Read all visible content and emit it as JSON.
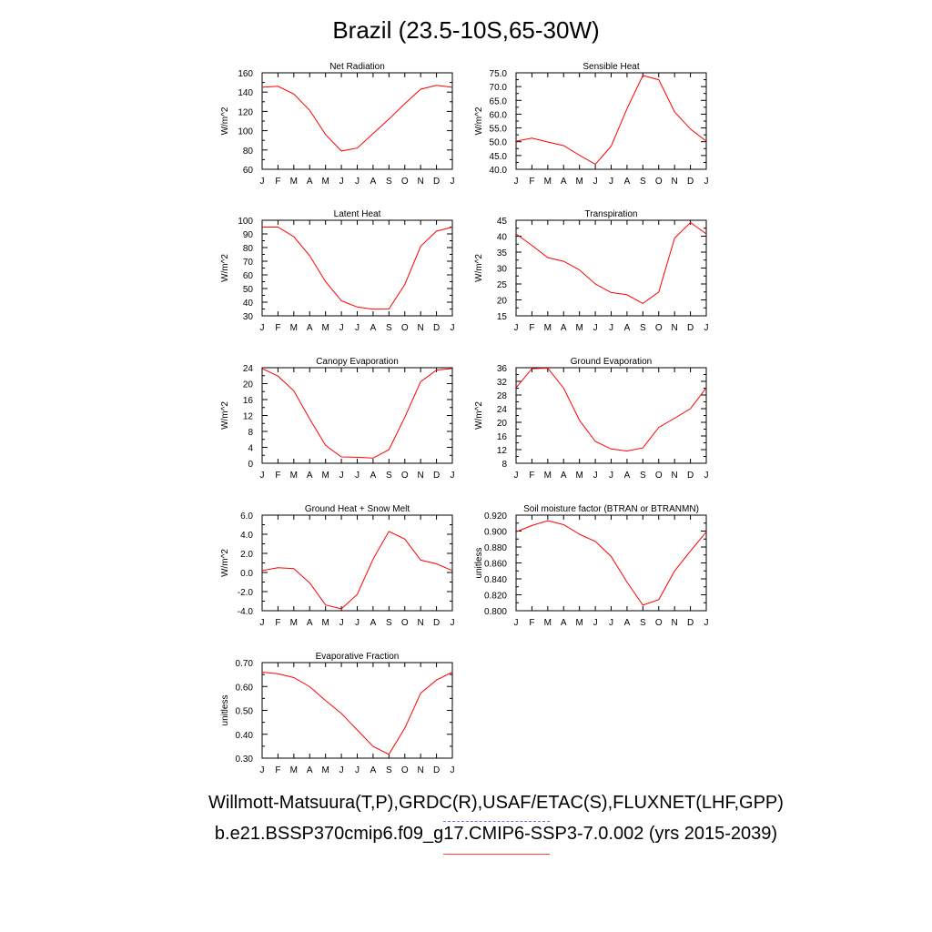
{
  "title": "Brazil (23.5-10S,65-30W)",
  "legend": {
    "observations": "Willmott-Matsuura(T,P),GRDC(R),USAF/ETAC(S),FLUXNET(LHF,GPP)",
    "model": "b.e21.BSSP370cmip6.f09_g17.CMIP6-SSP3-7.0.002 (yrs 2015-2039)",
    "observations_color": "#6a6aff",
    "model_color": "#ff0000"
  },
  "chart_data": [
    {
      "type": "line",
      "title": "Net Radiation",
      "ylabel": "W/m^2",
      "categories": [
        "J",
        "F",
        "M",
        "A",
        "M",
        "J",
        "J",
        "A",
        "S",
        "O",
        "N",
        "D",
        "J"
      ],
      "ylim": [
        60,
        160
      ],
      "yticks": [
        "60",
        "80",
        "100",
        "120",
        "140",
        "160"
      ],
      "values": [
        145,
        146,
        138,
        121,
        96,
        79,
        82,
        97,
        112,
        128,
        143,
        147,
        145
      ],
      "color": "#ff0000"
    },
    {
      "type": "line",
      "title": "Sensible Heat",
      "ylabel": "W/m^2",
      "categories": [
        "J",
        "F",
        "M",
        "A",
        "M",
        "J",
        "J",
        "A",
        "S",
        "O",
        "N",
        "D",
        "J"
      ],
      "ylim": [
        40,
        75
      ],
      "yticks": [
        "40.0",
        "45.0",
        "50.0",
        "55.0",
        "60.0",
        "65.0",
        "70.0",
        "75.0"
      ],
      "values": [
        50.2,
        51.3,
        49.9,
        48.6,
        45.1,
        41.8,
        48.4,
        62.0,
        74.0,
        72.5,
        60.8,
        54.6,
        50.2
      ],
      "color": "#ff0000"
    },
    {
      "type": "line",
      "title": "Latent Heat",
      "ylabel": "W/m^2",
      "categories": [
        "J",
        "F",
        "M",
        "A",
        "M",
        "J",
        "J",
        "A",
        "S",
        "O",
        "N",
        "D",
        "J"
      ],
      "ylim": [
        30,
        100
      ],
      "yticks": [
        "30",
        "40",
        "50",
        "60",
        "70",
        "80",
        "90",
        "100"
      ],
      "values": [
        95,
        95,
        88,
        74,
        55,
        41,
        36.5,
        34.8,
        35,
        53,
        81,
        92,
        95
      ],
      "color": "#ff0000"
    },
    {
      "type": "line",
      "title": "Transpiration",
      "ylabel": "W/m^2",
      "categories": [
        "J",
        "F",
        "M",
        "A",
        "M",
        "J",
        "J",
        "A",
        "S",
        "O",
        "N",
        "D",
        "J"
      ],
      "ylim": [
        15,
        45
      ],
      "yticks": [
        "15",
        "20",
        "25",
        "30",
        "35",
        "40",
        "45"
      ],
      "values": [
        40.7,
        37.1,
        33.3,
        32.1,
        29.4,
        25.0,
        22.3,
        21.6,
        18.9,
        22.5,
        39.4,
        44.3,
        40.7
      ],
      "color": "#ff0000"
    },
    {
      "type": "line",
      "title": "Canopy Evaporation",
      "ylabel": "W/m^2",
      "categories": [
        "J",
        "F",
        "M",
        "A",
        "M",
        "J",
        "J",
        "A",
        "S",
        "O",
        "N",
        "D",
        "J"
      ],
      "ylim": [
        0,
        24
      ],
      "yticks": [
        "0",
        "4",
        "8",
        "12",
        "16",
        "20",
        "24"
      ],
      "values": [
        23.8,
        21.9,
        18.2,
        11.1,
        4.5,
        1.6,
        1.5,
        1.3,
        3.4,
        11.6,
        20.5,
        23.4,
        23.8
      ],
      "color": "#ff0000"
    },
    {
      "type": "line",
      "title": "Ground Evaporation",
      "ylabel": "W/m^2",
      "categories": [
        "J",
        "F",
        "M",
        "A",
        "M",
        "J",
        "J",
        "A",
        "S",
        "O",
        "N",
        "D",
        "J"
      ],
      "ylim": [
        8,
        36
      ],
      "yticks": [
        "8",
        "12",
        "16",
        "20",
        "24",
        "28",
        "32",
        "36"
      ],
      "values": [
        30.1,
        35.7,
        35.9,
        30.0,
        20.6,
        14.4,
        12.2,
        11.6,
        12.5,
        18.5,
        21.2,
        24.0,
        30.1
      ],
      "color": "#ff0000"
    },
    {
      "type": "line",
      "title": "Ground Heat + Snow Melt",
      "ylabel": "W/m^2",
      "categories": [
        "J",
        "F",
        "M",
        "A",
        "M",
        "J",
        "J",
        "A",
        "S",
        "O",
        "N",
        "D",
        "J"
      ],
      "ylim": [
        -4,
        6
      ],
      "yticks": [
        "-4.0",
        "-2.0",
        "0.0",
        "2.0",
        "4.0",
        "6.0"
      ],
      "values": [
        0.2,
        0.5,
        0.4,
        -1.1,
        -3.4,
        -3.8,
        -2.3,
        1.4,
        4.3,
        3.5,
        1.3,
        0.9,
        0.2
      ],
      "color": "#ff0000"
    },
    {
      "type": "line",
      "title": "Soil moisture factor (BTRAN or BTRANMN)",
      "ylabel": "unitless",
      "categories": [
        "J",
        "F",
        "M",
        "A",
        "M",
        "J",
        "J",
        "A",
        "S",
        "O",
        "N",
        "D",
        "J"
      ],
      "ylim": [
        0.8,
        0.92
      ],
      "yticks": [
        "0.800",
        "0.820",
        "0.840",
        "0.860",
        "0.880",
        "0.900",
        "0.920"
      ],
      "values": [
        0.899,
        0.907,
        0.913,
        0.908,
        0.896,
        0.887,
        0.868,
        0.836,
        0.807,
        0.814,
        0.85,
        0.875,
        0.899
      ],
      "color": "#ff0000"
    },
    {
      "type": "line",
      "title": "Evaporative Fraction",
      "ylabel": "unitless",
      "categories": [
        "J",
        "F",
        "M",
        "A",
        "M",
        "J",
        "J",
        "A",
        "S",
        "O",
        "N",
        "D",
        "J"
      ],
      "ylim": [
        0.3,
        0.7
      ],
      "yticks": [
        "0.30",
        "0.40",
        "0.50",
        "0.60",
        "0.70"
      ],
      "values": [
        0.66,
        0.653,
        0.637,
        0.599,
        0.541,
        0.487,
        0.418,
        0.349,
        0.316,
        0.426,
        0.572,
        0.627,
        0.66
      ],
      "color": "#ff0000"
    }
  ]
}
